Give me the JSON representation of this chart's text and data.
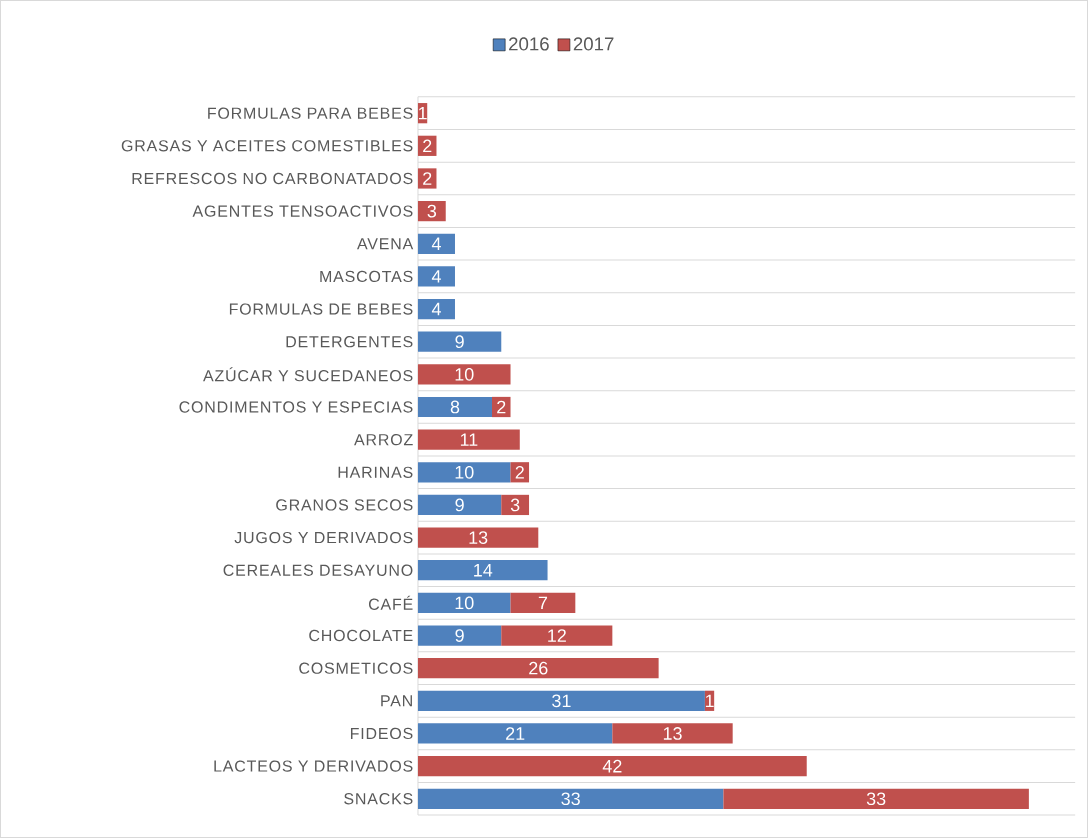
{
  "chart_data": {
    "type": "bar",
    "orientation": "horizontal",
    "stacked": true,
    "data_labels": true,
    "legend": "top",
    "grid": "y",
    "xlim": [
      0,
      71
    ],
    "categories": [
      "FORMULAS PARA BEBES",
      "GRASAS Y ACEITES COMESTIBLES",
      "REFRESCOS NO CARBONATADOS",
      "AGENTES TENSOACTIVOS",
      "AVENA",
      "MASCOTAS",
      "FORMULAS DE BEBES",
      "DETERGENTES",
      "AZÚCAR Y SUCEDANEOS",
      "CONDIMENTOS Y ESPECIAS",
      "ARROZ",
      "HARINAS",
      "GRANOS SECOS",
      "JUGOS Y DERIVADOS",
      "CEREALES DESAYUNO",
      "CAFÉ",
      "CHOCOLATE",
      "COSMETICOS",
      "PAN",
      "FIDEOS",
      "LACTEOS Y DERIVADOS",
      "SNACKS"
    ],
    "series": [
      {
        "name": "2016",
        "color": "#4f81bd",
        "values": [
          null,
          null,
          null,
          null,
          4,
          4,
          4,
          9,
          null,
          8,
          null,
          10,
          9,
          null,
          14,
          10,
          9,
          null,
          31,
          21,
          null,
          33
        ]
      },
      {
        "name": "2017",
        "color": "#c0504d",
        "values": [
          1,
          2,
          2,
          3,
          null,
          null,
          null,
          null,
          10,
          2,
          11,
          2,
          3,
          13,
          null,
          7,
          12,
          26,
          1,
          13,
          42,
          33
        ]
      }
    ]
  }
}
